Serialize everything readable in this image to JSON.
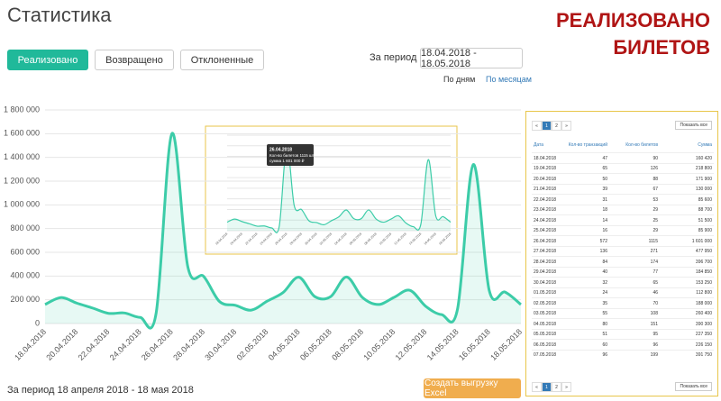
{
  "header": {
    "title": "Статистика",
    "stamp": [
      "РЕАЛИЗОВАНО",
      "БИЛЕТОВ"
    ]
  },
  "tabs": [
    "Реализовано",
    "Возвращено",
    "Отклоненные"
  ],
  "period": {
    "label": "За период",
    "value": "18.04.2018 - 18.05.2018",
    "modes": [
      "По дням",
      "По месяцам"
    ]
  },
  "chart_data": {
    "type": "line",
    "color": "#3ccca8",
    "grid": true,
    "categories": [
      "18.04.2018",
      null,
      "20.04.2018",
      null,
      "22.04.2018",
      null,
      "24.04.2018",
      null,
      "26.04.2018",
      null,
      "28.04.2018",
      null,
      "30.04.2018",
      null,
      "02.05.2018",
      null,
      "04.05.2018",
      null,
      "06.05.2018",
      null,
      "08.05.2018",
      null,
      "10.05.2018",
      null,
      "12.05.2018",
      null,
      "14.05.2018",
      null,
      "16.05.2018",
      null,
      "18.05.2018"
    ],
    "values": [
      160420,
      218800,
      171900,
      130000,
      85600,
      88700,
      51500,
      85900,
      1601000,
      477950,
      396700,
      184850,
      153250,
      112800,
      188000,
      260400,
      390300,
      227350,
      226150,
      391750,
      220000,
      160000,
      220000,
      280000,
      145000,
      75000,
      120000,
      1340000,
      280000,
      265000,
      160000
    ],
    "ylim": [
      0,
      1800000
    ],
    "yticks": [
      {
        "value": 0,
        "label": "0"
      },
      {
        "value": 200000,
        "label": "200 000"
      },
      {
        "value": 400000,
        "label": "400 000"
      },
      {
        "value": 600000,
        "label": "600 000"
      },
      {
        "value": 800000,
        "label": "800 000"
      },
      {
        "value": 1000000,
        "label": "1 000 000"
      },
      {
        "value": 1200000,
        "label": "1 200 000"
      },
      {
        "value": 1400000,
        "label": "1 400 000"
      },
      {
        "value": 1600000,
        "label": "1 600 000"
      },
      {
        "value": 1800000,
        "label": "1 800 000"
      }
    ],
    "tooltip": {
      "title": "26.04.2018",
      "lines": [
        "Кол-во билетов 1115 шт",
        "сумма 1 601 000 ₽"
      ]
    }
  },
  "table": {
    "pagination": [
      "«",
      "1",
      "2",
      "»"
    ],
    "show_all": "Показать все",
    "columns": [
      "Дата",
      "Кол-во транзакций",
      "Кол-во билетов",
      "Сумма"
    ],
    "rows": [
      [
        "18.04.2018",
        "47",
        "90",
        "160 420"
      ],
      [
        "19.04.2018",
        "65",
        "126",
        "218 800"
      ],
      [
        "20.04.2018",
        "50",
        "88",
        "171 900"
      ],
      [
        "21.04.2018",
        "39",
        "67",
        "130 000"
      ],
      [
        "22.04.2018",
        "31",
        "53",
        "85 600"
      ],
      [
        "23.04.2018",
        "18",
        "29",
        "88 700"
      ],
      [
        "24.04.2018",
        "14",
        "25",
        "51 500"
      ],
      [
        "25.04.2018",
        "16",
        "29",
        "85 900"
      ],
      [
        "26.04.2018",
        "572",
        "1115",
        "1 601 000"
      ],
      [
        "27.04.2018",
        "136",
        "271",
        "477 950"
      ],
      [
        "28.04.2018",
        "84",
        "174",
        "396 700"
      ],
      [
        "29.04.2018",
        "40",
        "77",
        "184 850"
      ],
      [
        "30.04.2018",
        "32",
        "65",
        "153 250"
      ],
      [
        "01.05.2018",
        "24",
        "46",
        "112 800"
      ],
      [
        "02.05.2018",
        "35",
        "70",
        "188 000"
      ],
      [
        "03.05.2018",
        "55",
        "108",
        "260 400"
      ],
      [
        "04.05.2018",
        "80",
        "151",
        "390 300"
      ],
      [
        "05.05.2018",
        "51",
        "95",
        "227 350"
      ],
      [
        "06.05.2018",
        "60",
        "96",
        "226 150"
      ],
      [
        "07.05.2018",
        "96",
        "199",
        "391 750"
      ]
    ]
  },
  "footer": {
    "period": "За период 18 апреля 2018 - 18 мая 2018",
    "export": "Создать выгрузку Excel"
  }
}
